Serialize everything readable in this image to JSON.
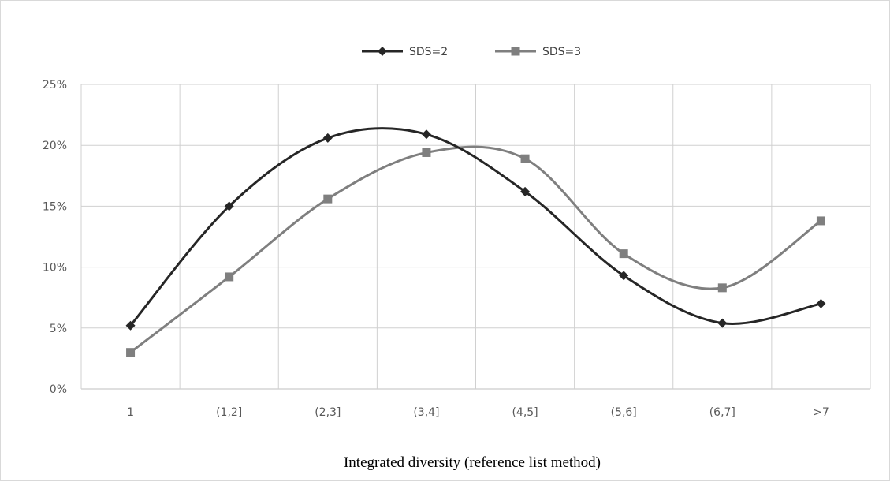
{
  "chart_data": {
    "type": "line",
    "smoothed": true,
    "categories": [
      "1",
      "(1,2]",
      "(2,3]",
      "(3,4]",
      "(4,5]",
      "(5,6]",
      "(6,7]",
      ">7"
    ],
    "series": [
      {
        "name": "SDS=2",
        "marker": "diamond",
        "color": "#262626",
        "values": [
          5.2,
          15.0,
          20.6,
          20.9,
          16.2,
          9.3,
          5.4,
          7.0
        ]
      },
      {
        "name": "SDS=3",
        "marker": "square",
        "color": "#7f7f7f",
        "values": [
          3.0,
          9.2,
          15.6,
          19.4,
          18.9,
          11.1,
          8.3,
          13.8
        ]
      }
    ],
    "ylim": [
      0,
      25
    ],
    "yticks": [
      0,
      5,
      10,
      15,
      20,
      25
    ],
    "ytick_labels": [
      "0%",
      "5%",
      "10%",
      "15%",
      "20%",
      "25%"
    ],
    "xlabel": "Integrated diversity (reference list method)",
    "ylabel": "",
    "title": "",
    "grid": true,
    "legend_position": "top-center"
  }
}
